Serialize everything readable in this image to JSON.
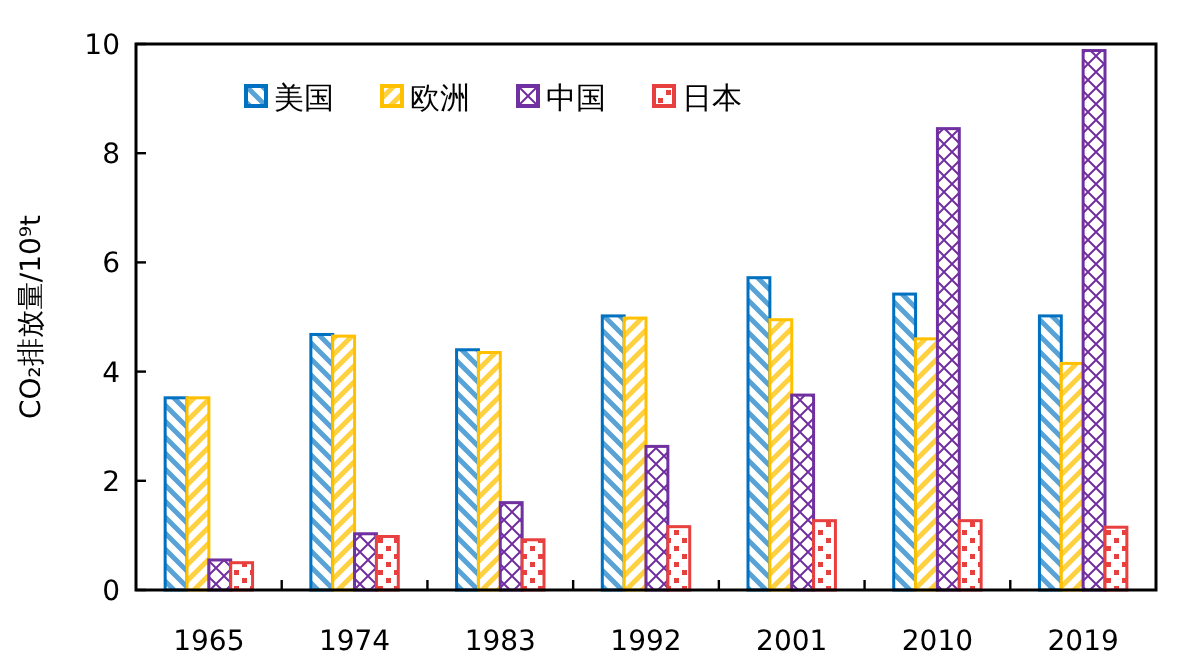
{
  "chart_data": {
    "type": "bar",
    "ylabel": "CO₂排放量/10⁹t",
    "categories": [
      "1965",
      "1974",
      "1983",
      "1992",
      "2001",
      "2010",
      "2019"
    ],
    "series": [
      {
        "name": "美国",
        "color": "#0070c0",
        "values": [
          3.52,
          4.68,
          4.4,
          5.02,
          5.72,
          5.42,
          5.02
        ]
      },
      {
        "name": "欧洲",
        "color": "#ffc000",
        "values": [
          3.52,
          4.65,
          4.35,
          4.98,
          4.95,
          4.6,
          4.15
        ]
      },
      {
        "name": "中国",
        "color": "#7030a0",
        "values": [
          0.55,
          1.03,
          1.6,
          2.63,
          3.57,
          8.45,
          9.88
        ]
      },
      {
        "name": "日本",
        "color": "#e8403f",
        "values": [
          0.5,
          0.98,
          0.92,
          1.16,
          1.27,
          1.27,
          1.15
        ]
      }
    ],
    "ylim": [
      0,
      10
    ],
    "yticks": [
      0,
      2,
      4,
      6,
      8,
      10
    ],
    "grid": false,
    "legend": "top left"
  }
}
